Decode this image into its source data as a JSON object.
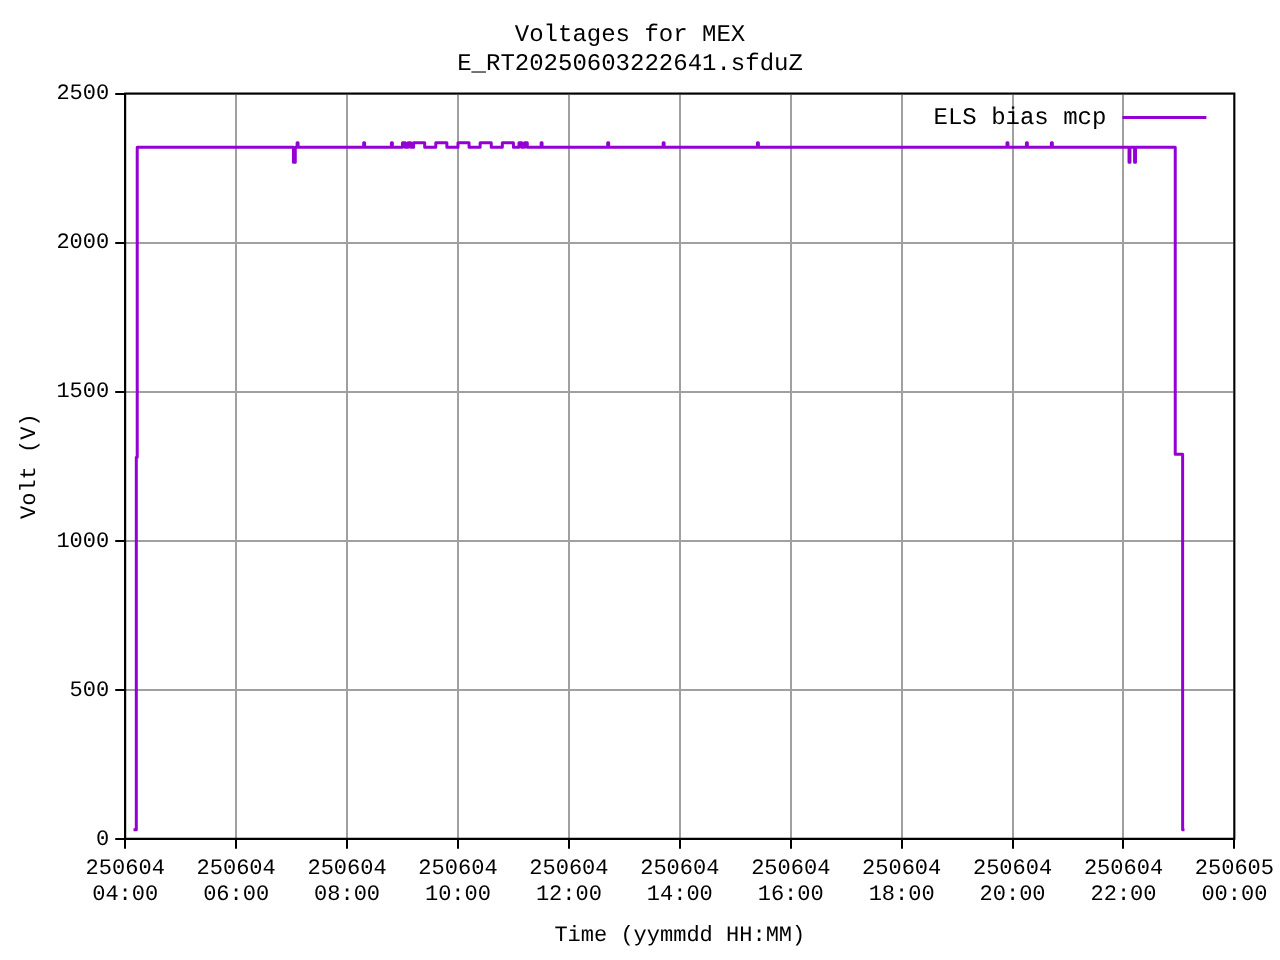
{
  "chart_data": {
    "type": "step",
    "title": "Voltages for MEX",
    "subtitle": "E_RT20250603222641.sfduZ",
    "xlabel": "Time (yymmdd HH:MM)",
    "ylabel": "Volt (V)",
    "x": [
      "2025-06-04T04:09",
      "2025-06-04T04:12",
      "2025-06-04T04:13",
      "2025-06-04T07:02",
      "2025-06-04T07:04",
      "2025-06-04T07:06",
      "2025-06-04T07:07",
      "2025-06-04T08:18",
      "2025-06-04T08:19",
      "2025-06-04T08:48",
      "2025-06-04T08:49",
      "2025-06-04T09:00",
      "2025-06-04T09:03",
      "2025-06-04T09:06",
      "2025-06-04T09:09",
      "2025-06-04T09:12",
      "2025-06-04T09:24",
      "2025-06-04T09:36",
      "2025-06-04T09:48",
      "2025-06-04T10:00",
      "2025-06-04T10:12",
      "2025-06-04T10:24",
      "2025-06-04T10:36",
      "2025-06-04T10:48",
      "2025-06-04T11:00",
      "2025-06-04T11:06",
      "2025-06-04T11:09",
      "2025-06-04T11:12",
      "2025-06-04T11:15",
      "2025-06-04T11:30",
      "2025-06-04T11:31",
      "2025-06-04T12:42",
      "2025-06-04T12:43",
      "2025-06-04T13:42",
      "2025-06-04T13:43",
      "2025-06-04T15:24",
      "2025-06-04T15:25",
      "2025-06-04T19:54",
      "2025-06-04T19:55",
      "2025-06-04T20:15",
      "2025-06-04T20:16",
      "2025-06-04T20:42",
      "2025-06-04T20:43",
      "2025-06-04T22:06",
      "2025-06-04T22:07",
      "2025-06-04T22:12",
      "2025-06-04T22:13",
      "2025-06-04T22:56",
      "2025-06-04T23:04",
      "2025-06-04T23:06"
    ],
    "series": [
      {
        "name": "ELS bias mcp",
        "color": "#9400d3",
        "values": [
          30,
          1280,
          2320,
          2270,
          2320,
          2335,
          2320,
          2335,
          2320,
          2335,
          2320,
          2335,
          2320,
          2335,
          2320,
          2335,
          2320,
          2335,
          2320,
          2335,
          2320,
          2335,
          2320,
          2335,
          2320,
          2335,
          2320,
          2335,
          2320,
          2335,
          2320,
          2335,
          2320,
          2335,
          2320,
          2335,
          2320,
          2335,
          2320,
          2335,
          2320,
          2335,
          2320,
          2270,
          2320,
          2270,
          2320,
          1290,
          30,
          30
        ]
      }
    ],
    "xlim": [
      "2025-06-04T04:00",
      "2025-06-05T00:00"
    ],
    "xticks": [
      {
        "value": "2025-06-04T04:00",
        "label": "250604\n04:00"
      },
      {
        "value": "2025-06-04T06:00",
        "label": "250604\n06:00"
      },
      {
        "value": "2025-06-04T08:00",
        "label": "250604\n08:00"
      },
      {
        "value": "2025-06-04T10:00",
        "label": "250604\n10:00"
      },
      {
        "value": "2025-06-04T12:00",
        "label": "250604\n12:00"
      },
      {
        "value": "2025-06-04T14:00",
        "label": "250604\n14:00"
      },
      {
        "value": "2025-06-04T16:00",
        "label": "250604\n16:00"
      },
      {
        "value": "2025-06-04T18:00",
        "label": "250604\n18:00"
      },
      {
        "value": "2025-06-04T20:00",
        "label": "250604\n20:00"
      },
      {
        "value": "2025-06-04T22:00",
        "label": "250604\n22:00"
      },
      {
        "value": "2025-06-05T00:00",
        "label": "250605\n00:00"
      }
    ],
    "ylim": [
      0,
      2500
    ],
    "yticks": [
      0,
      500,
      1000,
      1500,
      2000,
      2500
    ],
    "grid": true,
    "legend": "top right",
    "line_style": "solid",
    "marker": "none"
  }
}
